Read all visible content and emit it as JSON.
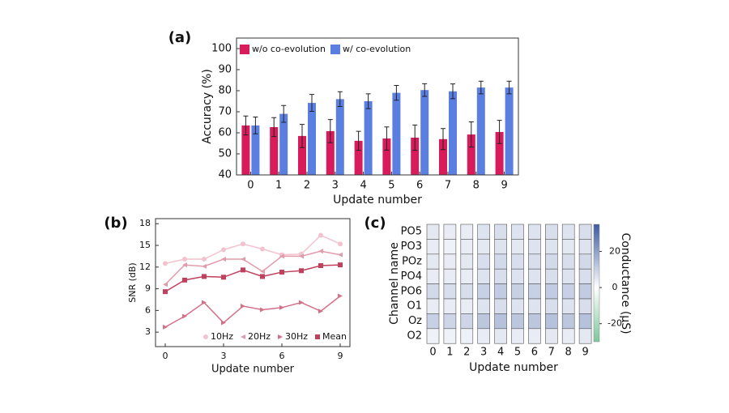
{
  "chart_data": [
    {
      "type": "bar",
      "panel_label": "(a)",
      "xlabel": "Update number",
      "ylabel": "Accuracy (%)",
      "categories": [
        "0",
        "1",
        "2",
        "3",
        "4",
        "5",
        "6",
        "7",
        "8",
        "9"
      ],
      "series": [
        {
          "name": "w/o co-evolution",
          "color": "#d81b5a",
          "values": [
            63.5,
            62.7,
            58.5,
            60.8,
            56.2,
            57.3,
            57.7,
            57,
            59.2,
            60.4
          ],
          "errors": [
            4.5,
            4.5,
            5.5,
            5.5,
            4.5,
            5.5,
            6,
            5,
            6,
            5.5
          ]
        },
        {
          "name": "w/ co-evolution",
          "color": "#5b7fe0",
          "values": [
            63.5,
            69,
            74.2,
            76,
            75,
            79,
            80.3,
            79.7,
            81.5,
            81.5
          ],
          "errors": [
            4,
            4,
            4,
            3.5,
            3.5,
            3.5,
            3,
            3.5,
            3,
            3
          ]
        }
      ],
      "ylim": [
        40,
        105
      ],
      "yticks": [
        40,
        50,
        60,
        70,
        80,
        90,
        100
      ],
      "legend": "top-left"
    },
    {
      "type": "line",
      "panel_label": "(b)",
      "xlabel": "Update number",
      "ylabel": "SNR (dB)",
      "x": [
        0,
        1,
        2,
        3,
        4,
        5,
        6,
        7,
        8,
        9
      ],
      "series": [
        {
          "name": "10Hz",
          "color": "#f2c3ce",
          "marker": "circle",
          "values": [
            12.5,
            13.1,
            13.1,
            14.4,
            15.2,
            14.5,
            13.7,
            13.8,
            16.4,
            15.2
          ]
        },
        {
          "name": "20Hz",
          "color": "#e39aab",
          "marker": "triangle-left",
          "values": [
            9.6,
            12.3,
            12.1,
            13.1,
            13.1,
            11.4,
            13.5,
            13.5,
            14.2,
            13.7
          ]
        },
        {
          "name": "30Hz",
          "color": "#d47088",
          "marker": "triangle-right",
          "values": [
            3.7,
            5.2,
            7.1,
            4.3,
            6.6,
            6.1,
            6.4,
            7.1,
            5.9,
            8.0
          ]
        },
        {
          "name": "Mean",
          "color": "#c0405e",
          "marker": "square",
          "values": [
            8.6,
            10.2,
            10.7,
            10.6,
            11.6,
            10.7,
            11.3,
            11.5,
            12.2,
            12.3
          ]
        }
      ],
      "xlim": [
        -0.5,
        9.5
      ],
      "xticks": [
        0,
        3,
        6,
        9
      ],
      "ylim": [
        1,
        18.7
      ],
      "yticks": [
        3,
        6,
        9,
        12,
        15,
        18
      ],
      "legend": "bottom-right"
    },
    {
      "type": "heatmap",
      "panel_label": "(c)",
      "xlabel": "Update number",
      "ylabel": "Channel name",
      "colorbar_label": "Conductance (μS)",
      "x": [
        "0",
        "1",
        "2",
        "3",
        "4",
        "5",
        "6",
        "7",
        "8",
        "9"
      ],
      "y": [
        "PO5",
        "PO3",
        "POz",
        "PO4",
        "PO6",
        "O1",
        "Oz",
        "O2"
      ],
      "z": [
        [
          5,
          4,
          4,
          6,
          7,
          6,
          6,
          7,
          6,
          7
        ],
        [
          4,
          3,
          4,
          5,
          6,
          5,
          6,
          6,
          5,
          6
        ],
        [
          5,
          4,
          5,
          7,
          8,
          7,
          7,
          8,
          7,
          8
        ],
        [
          4,
          4,
          4,
          6,
          7,
          6,
          6,
          7,
          6,
          7
        ],
        [
          8,
          7,
          7,
          10,
          11,
          10,
          10,
          11,
          10,
          11
        ],
        [
          4,
          4,
          4,
          6,
          7,
          6,
          6,
          7,
          6,
          7
        ],
        [
          10,
          9,
          9,
          12,
          13,
          12,
          12,
          13,
          12,
          13
        ],
        [
          3,
          3,
          3,
          4,
          5,
          4,
          4,
          5,
          4,
          5
        ]
      ],
      "clim": [
        -30,
        35
      ],
      "colorbar_ticks": [
        -20,
        0,
        20
      ],
      "colors": [
        "#7cc79c",
        "#ffffff",
        "#3b5ba0"
      ]
    }
  ]
}
